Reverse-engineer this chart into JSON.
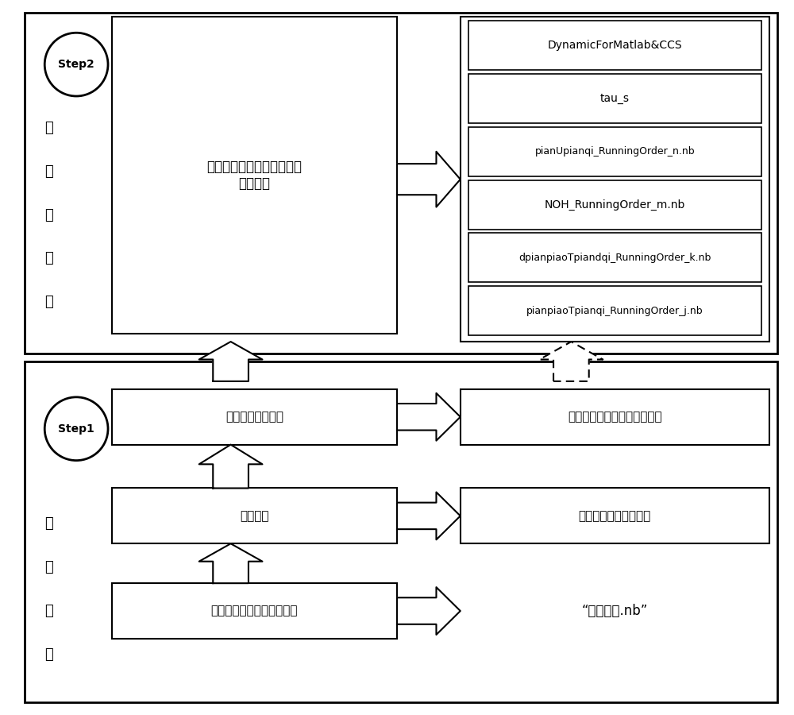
{
  "bg_color": "#ffffff",
  "text_color": "#000000",
  "top_step_label": "Step2",
  "top_section_label_chars": [
    "机",
    "械",
    "化",
    "建",
    "模"
  ],
  "top_main_box_text": "机械化动力学建模与动力学\n模型输出",
  "top_right_boxes": [
    "DynamicForMatlab&CCS",
    "tau_s",
    "pianUpianqi_RunningOrder_n.nb",
    "NOH_RunningOrder_m.nb",
    "dpianpiaoTpiandqi_RunningOrder_k.nb",
    "pianpiaoTpianqi_RunningOrder_j.nb"
  ],
  "bottom_step_label": "Step1",
  "bottom_section_label_chars": [
    "系",
    "统",
    "分",
    "析"
  ],
  "bottom_left_boxes": [
    "动能、力函数分析",
    "约束分析",
    "系统坐标系、广义坐标分析"
  ],
  "bottom_right_boxes": [
    "角速度、质心速度、质心高度",
    "完整约束、非完整约束",
    "“对象名称.nb”"
  ]
}
